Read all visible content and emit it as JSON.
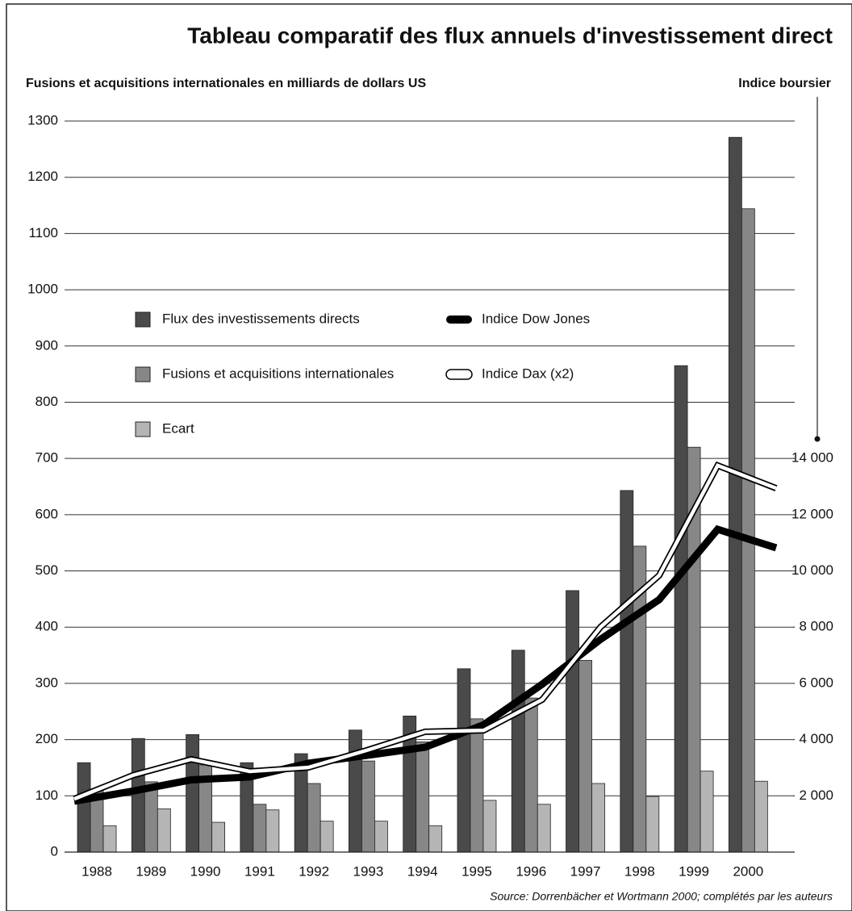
{
  "chart_data": {
    "type": "bar",
    "title": "Tableau comparatif des flux annuels d'investissement direct",
    "y_axis_title": "Fusions et acquisitions internationales en milliards de dollars US",
    "y2_axis_title": "Indice boursier",
    "source": "Source: Dorrenbächer et Wortmann 2000; complétés par les auteurs",
    "categories": [
      "1988",
      "1989",
      "1990",
      "1991",
      "1992",
      "1993",
      "1994",
      "1995",
      "1996",
      "1997",
      "1998",
      "1999",
      "2000"
    ],
    "series": [
      {
        "name": "Flux des investissements directs",
        "type": "bar",
        "color": "#4a4a4a",
        "values": [
          159,
          202,
          209,
          159,
          175,
          217,
          242,
          326,
          359,
          465,
          643,
          865,
          1271
        ]
      },
      {
        "name": "Fusions et acquisitions internationales",
        "type": "bar",
        "color": "#878787",
        "values": [
          112,
          125,
          155,
          85,
          122,
          162,
          196,
          237,
          274,
          341,
          544,
          720,
          1144
        ]
      },
      {
        "name": "Ecart",
        "type": "bar",
        "color": "#b5b5b5",
        "values": [
          47,
          77,
          53,
          75,
          55,
          55,
          47,
          92,
          85,
          122,
          99,
          144,
          126
        ]
      },
      {
        "name": "Indice Dow Jones",
        "type": "line",
        "axis": "y2",
        "color": "#000000",
        "values": [
          1810,
          2170,
          2570,
          2670,
          3160,
          3440,
          3730,
          4530,
          5970,
          7570,
          8980,
          11480,
          10820
        ]
      },
      {
        "name": "Indice Dax  (x2)",
        "type": "line",
        "axis": "y2",
        "color": "#ffffff",
        "values": [
          1890,
          2730,
          3300,
          2870,
          3010,
          3620,
          4280,
          4330,
          5420,
          8010,
          9840,
          13750,
          12940
        ]
      }
    ],
    "ylim": [
      0,
      1300
    ],
    "yticks": [
      0,
      100,
      200,
      300,
      400,
      500,
      600,
      700,
      800,
      900,
      1000,
      1100,
      1200,
      1300
    ],
    "y2lim": [
      0,
      26000
    ],
    "y2ticks": [
      {
        "value": 2000,
        "label": "2 000"
      },
      {
        "value": 4000,
        "label": "4 000"
      },
      {
        "value": 6000,
        "label": "6 000"
      },
      {
        "value": 8000,
        "label": "8 000"
      },
      {
        "value": 10000,
        "label": "10 000"
      },
      {
        "value": 12000,
        "label": "12 000"
      },
      {
        "value": 14000,
        "label": "14 000"
      }
    ],
    "grid": true
  }
}
